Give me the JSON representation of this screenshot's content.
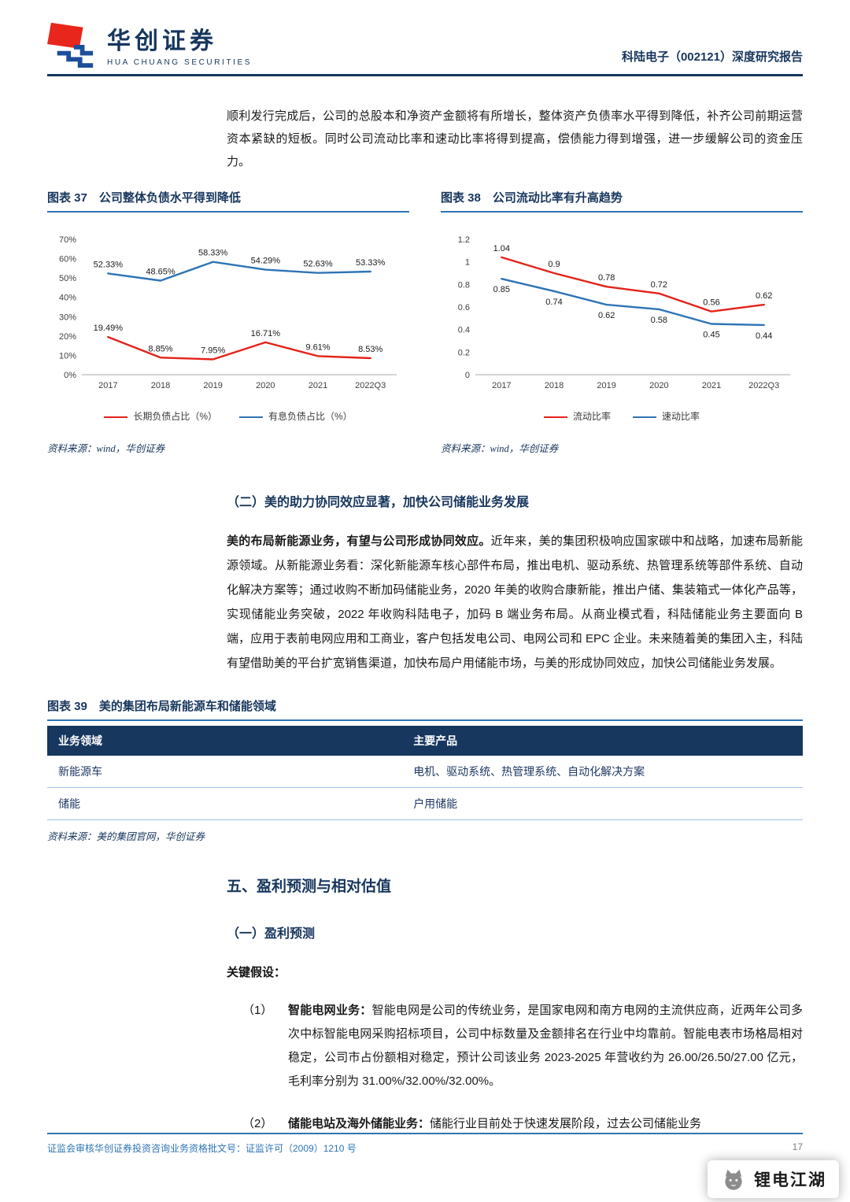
{
  "header": {
    "brand_cn": "华创证券",
    "brand_en": "HUA CHUANG SECURITIES",
    "report_title": "科陆电子（002121）深度研究报告"
  },
  "intro_paragraph": "顺利发行完成后，公司的总股本和净资产金额将有所增长，整体资产负债率水平得到降低，补齐公司前期运营资本紧缺的短板。同时公司流动比率和速动比率将得到提高，偿债能力得到增强，进一步缓解公司的资金压力。",
  "figure37": {
    "title": "图表 37　公司整体负债水平得到降低",
    "source": "资料来源：wind，华创证券"
  },
  "figure38": {
    "title": "图表 38　公司流动比率有升高趋势",
    "source": "资料来源：wind，华创证券"
  },
  "chart_data": [
    {
      "id": "debt-structure",
      "type": "line",
      "title": "公司整体负债水平得到降低",
      "categories": [
        "2017",
        "2018",
        "2019",
        "2020",
        "2021",
        "2022Q3"
      ],
      "series": [
        {
          "name": "长期负债占比（%）",
          "color": "#e2231a",
          "values": [
            19.49,
            8.85,
            7.95,
            16.71,
            9.61,
            8.53
          ],
          "labels": [
            "19.49%",
            "8.85%",
            "7.95%",
            "16.71%",
            "9.61%",
            "8.53%"
          ],
          "label_position": "above"
        },
        {
          "name": "有息负债占比（%）",
          "color": "#2e74b5",
          "values": [
            52.33,
            48.65,
            58.33,
            54.29,
            52.63,
            53.33
          ],
          "labels": [
            "52.33%",
            "48.65%",
            "58.33%",
            "54.29%",
            "52.63%",
            "53.33%"
          ],
          "label_position": "above"
        }
      ],
      "ylim": [
        0,
        70
      ],
      "yticks": [
        "0%",
        "10%",
        "20%",
        "30%",
        "40%",
        "50%",
        "60%",
        "70%"
      ],
      "grid": false,
      "legend_position": "bottom"
    },
    {
      "id": "liquidity-ratio",
      "type": "line",
      "title": "公司流动比率有升高趋势",
      "categories": [
        "2017",
        "2018",
        "2019",
        "2020",
        "2021",
        "2022Q3"
      ],
      "series": [
        {
          "name": "流动比率",
          "color": "#e2231a",
          "values": [
            1.04,
            0.9,
            0.78,
            0.72,
            0.56,
            0.62
          ],
          "labels": [
            "1.04",
            "0.9",
            "0.78",
            "0.72",
            "0.56",
            "0.62"
          ],
          "label_position": "above"
        },
        {
          "name": "速动比率",
          "color": "#2e74b5",
          "values": [
            0.85,
            0.74,
            0.62,
            0.58,
            0.45,
            0.44
          ],
          "labels": [
            "0.85",
            "0.74",
            "0.62",
            "0.58",
            "0.45",
            "0.44"
          ],
          "label_position": "below"
        }
      ],
      "ylim": [
        0,
        1.2
      ],
      "yticks": [
        "0",
        "0.2",
        "0.4",
        "0.6",
        "0.8",
        "1",
        "1.2"
      ],
      "grid": false,
      "legend_position": "bottom"
    }
  ],
  "section2": {
    "heading": "（二）美的助力协同效应显著，加快公司储能业务发展",
    "para_bold": "美的布局新能源业务，有望与公司形成协同效应。",
    "para_rest": "近年来，美的集团积极响应国家碳中和战略，加速布局新能源领域。从新能源业务看：深化新能源车核心部件布局，推出电机、驱动系统、热管理系统等部件系统、自动化解决方案等；通过收购不断加码储能业务，2020 年美的收购合康新能，推出户储、集装箱式一体化产品等，实现储能业务突破，2022 年收购科陆电子，加码 B 端业务布局。从商业模式看，科陆储能业务主要面向 B 端，应用于表前电网应用和工商业，客户包括发电公司、电网公司和 EPC 企业。未来随着美的集团入主，科陆有望借助美的平台扩宽销售渠道，加快布局户用储能市场，与美的形成协同效应，加快公司储能业务发展。"
  },
  "figure39": {
    "title": "图表 39　美的集团布局新能源车和储能领域",
    "table": {
      "headers": [
        "业务领域",
        "主要产品"
      ],
      "rows": [
        [
          "新能源车",
          "电机、驱动系统、热管理系统、自动化解决方案"
        ],
        [
          "储能",
          "户用储能"
        ]
      ]
    },
    "source": "资料来源：美的集团官网，华创证券"
  },
  "section5": {
    "heading": "五、盈利预测与相对估值",
    "sub1": "（一）盈利预测",
    "key_assumptions": "关键假设：",
    "items": [
      {
        "num": "（1）",
        "lead": "智能电网业务：",
        "text": "智能电网是公司的传统业务，是国家电网和南方电网的主流供应商，近两年公司多次中标智能电网采购招标项目，公司中标数量及金额排名在行业中均靠前。智能电表市场格局相对稳定，公司市占份额相对稳定，预计公司该业务 2023-2025 年营收约为 26.00/26.50/27.00 亿元，毛利率分别为 31.00%/32.00%/32.00%。"
      },
      {
        "num": "（2）",
        "lead": "储能电站及海外储能业务：",
        "text": "储能行业目前处于快速发展阶段，过去公司储能业务"
      }
    ]
  },
  "footer": {
    "license": "证监会审核华创证券投资咨询业务资格批文号：证监许可（2009）1210 号",
    "page": "17"
  },
  "watermark": {
    "text": "锂电江湖"
  },
  "colors": {
    "accent_navy": "#17365d",
    "accent_blue": "#2e74b5",
    "table_header_bg": "#17375e",
    "series_red": "#e2231a",
    "series_blue": "#2e74b5"
  }
}
